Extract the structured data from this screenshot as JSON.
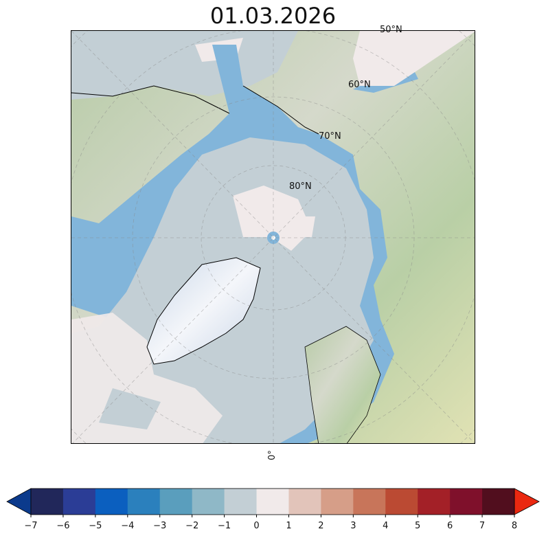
{
  "title": "01.03.2026",
  "map": {
    "projection": "north-polar-stereographic",
    "lat_labels": [
      "50°N",
      "60°N",
      "70°N",
      "80°N"
    ],
    "lon_label": "0°",
    "gridlines": true
  },
  "colorbar": {
    "ticks": [
      "−7",
      "−6",
      "−5",
      "−4",
      "−3",
      "−2",
      "−1",
      "0",
      "1",
      "2",
      "3",
      "4",
      "5",
      "6",
      "7",
      "8"
    ],
    "colors": [
      "#21275a",
      "#2b3d96",
      "#0b5fbf",
      "#2b80bd",
      "#5a9ebd",
      "#8fb8c7",
      "#c3cfd5",
      "#f1eaea",
      "#e2c4ba",
      "#d69e88",
      "#c8755a",
      "#bb4a33",
      "#a32027",
      "#7f102b",
      "#510e1e"
    ],
    "under_color": "#0b3a8c",
    "over_color": "#ea2810",
    "extend": "both"
  }
}
